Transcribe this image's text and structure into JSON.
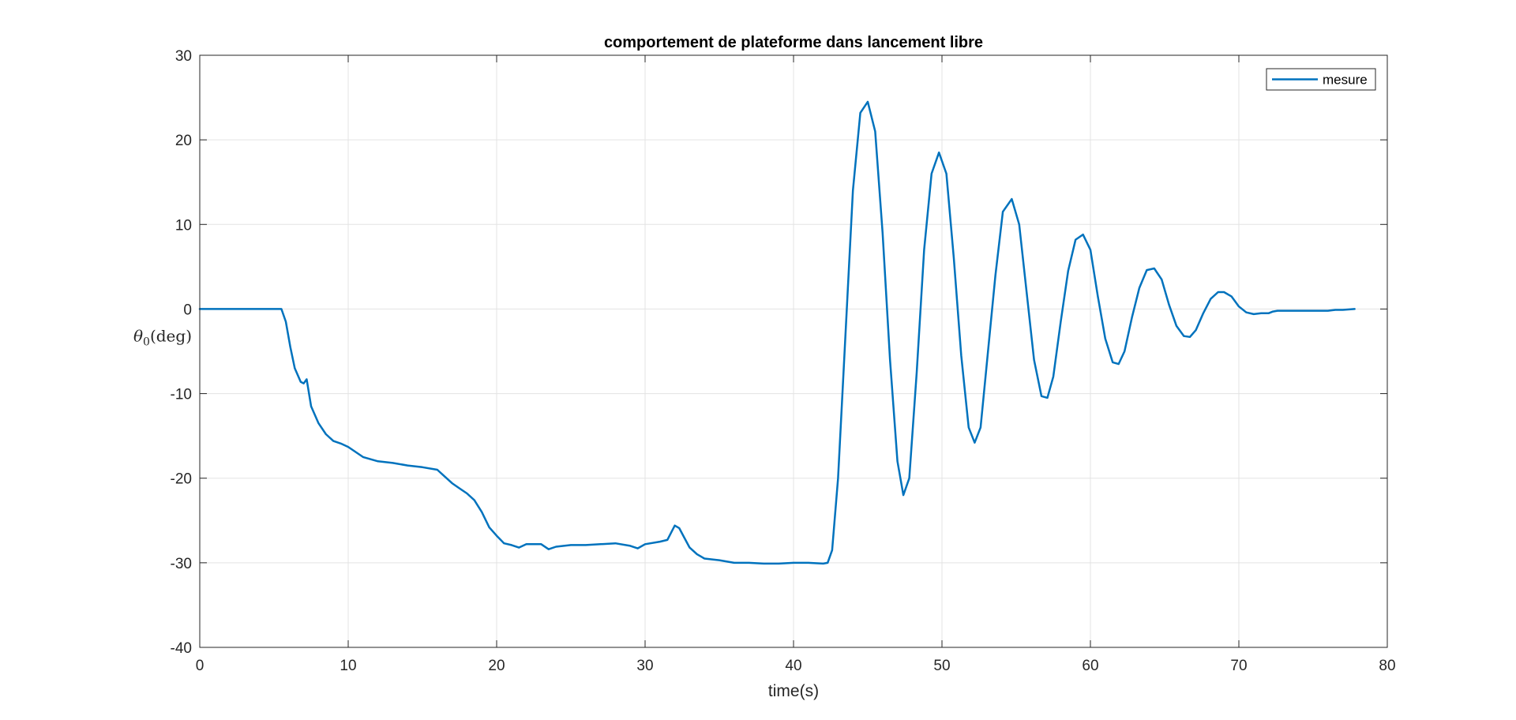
{
  "chart_data": {
    "type": "line",
    "title": "comportement de plateforme dans lancement libre",
    "xlabel": "time(s)",
    "ylabel_base": "θ",
    "ylabel_sub": "0",
    "ylabel_rest": "(deg)",
    "xlim": [
      0,
      80
    ],
    "ylim": [
      -40,
      30
    ],
    "xticks": [
      0,
      10,
      20,
      30,
      40,
      50,
      60,
      70,
      80
    ],
    "yticks": [
      -40,
      -30,
      -20,
      -10,
      0,
      10,
      20,
      30
    ],
    "grid": true,
    "legend_position": "top-right",
    "colors": {
      "series": "#0072BD",
      "grid": "#e3e3e3",
      "axis": "#262626"
    },
    "series": [
      {
        "name": "mesure",
        "x": [
          0,
          2,
          4,
          5.5,
          5.8,
          6.1,
          6.4,
          6.8,
          7.0,
          7.2,
          7.5,
          8.0,
          8.5,
          9.0,
          9.5,
          10.0,
          11.0,
          12.0,
          13.0,
          14.0,
          15.0,
          16.0,
          16.5,
          17.0,
          17.5,
          18.0,
          18.5,
          19.0,
          19.5,
          20.0,
          20.5,
          21.0,
          21.5,
          22.0,
          23.0,
          23.5,
          24.0,
          25.0,
          26.0,
          27.0,
          28.0,
          29.0,
          29.5,
          30.0,
          31.0,
          31.5,
          32.0,
          32.3,
          32.6,
          33.0,
          33.5,
          34.0,
          35.0,
          36.0,
          37.0,
          38.0,
          39.0,
          40.0,
          41.0,
          42.0,
          42.3,
          42.6,
          43.0,
          43.5,
          44.0,
          44.5,
          45.0,
          45.5,
          46.0,
          46.5,
          47.0,
          47.4,
          47.8,
          48.3,
          48.8,
          49.3,
          49.8,
          50.3,
          50.8,
          51.3,
          51.8,
          52.2,
          52.6,
          53.1,
          53.6,
          54.1,
          54.7,
          55.2,
          55.7,
          56.2,
          56.7,
          57.1,
          57.5,
          58.0,
          58.5,
          59.0,
          59.5,
          60.0,
          60.5,
          61.0,
          61.5,
          61.9,
          62.3,
          62.8,
          63.3,
          63.8,
          64.3,
          64.8,
          65.3,
          65.8,
          66.3,
          66.7,
          67.1,
          67.6,
          68.1,
          68.6,
          69.0,
          69.5,
          70.0,
          70.5,
          71.0,
          71.5,
          72.0,
          72.3,
          72.6,
          73.0,
          74.0,
          75.0,
          76.0,
          76.5,
          77.0,
          77.8
        ],
        "y": [
          0,
          0,
          0,
          0,
          -1.5,
          -4.5,
          -7.0,
          -8.6,
          -8.8,
          -8.3,
          -11.5,
          -13.5,
          -14.8,
          -15.6,
          -15.9,
          -16.3,
          -17.5,
          -18.0,
          -18.2,
          -18.5,
          -18.7,
          -19.0,
          -19.8,
          -20.6,
          -21.2,
          -21.8,
          -22.6,
          -24.0,
          -25.8,
          -26.8,
          -27.7,
          -27.9,
          -28.2,
          -27.8,
          -27.8,
          -28.4,
          -28.1,
          -27.9,
          -27.9,
          -27.8,
          -27.7,
          -28.0,
          -28.3,
          -27.8,
          -27.5,
          -27.3,
          -25.6,
          -25.9,
          -26.9,
          -28.2,
          -29.0,
          -29.5,
          -29.7,
          -30.0,
          -30.0,
          -30.1,
          -30.1,
          -30.0,
          -30.0,
          -30.1,
          -30.0,
          -28.5,
          -20.0,
          -3.0,
          14.0,
          23.2,
          24.5,
          21.0,
          9.0,
          -6.0,
          -18.0,
          -22.0,
          -20.0,
          -7.5,
          7.0,
          16.0,
          18.5,
          16.0,
          6.0,
          -5.5,
          -14.0,
          -15.8,
          -14.0,
          -5.0,
          4.0,
          11.5,
          13.0,
          10.0,
          2.0,
          -6.0,
          -10.3,
          -10.5,
          -8.0,
          -1.5,
          4.5,
          8.2,
          8.8,
          7.0,
          1.5,
          -3.5,
          -6.3,
          -6.5,
          -5.0,
          -1.0,
          2.5,
          4.6,
          4.8,
          3.5,
          0.5,
          -2.0,
          -3.2,
          -3.3,
          -2.5,
          -0.5,
          1.2,
          2.0,
          2.0,
          1.5,
          0.3,
          -0.4,
          -0.6,
          -0.5,
          -0.5,
          -0.3,
          -0.2,
          -0.2,
          -0.2,
          -0.2,
          -0.2,
          -0.1,
          -0.1,
          0
        ]
      }
    ]
  }
}
